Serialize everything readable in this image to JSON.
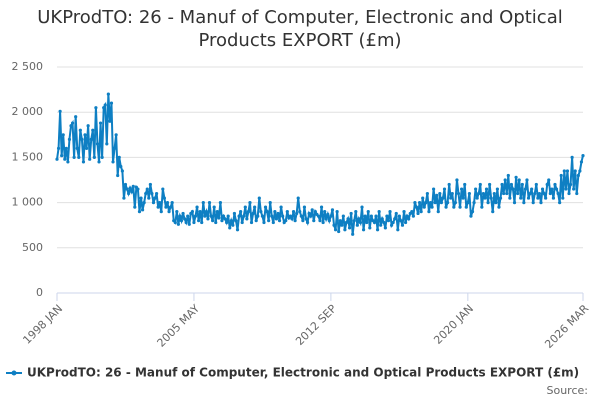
{
  "chart_data": {
    "type": "line",
    "title": "UKProdTO: 26 - Manuf of Computer, Electronic and Optical Products EXPORT (£m)",
    "source": "Source:",
    "categories": [
      "1998 JAN",
      null,
      null,
      null,
      null,
      null,
      null,
      null,
      null,
      null,
      null,
      null,
      null,
      null,
      null,
      null,
      null,
      null,
      null,
      null,
      null,
      null,
      null,
      null,
      null,
      null,
      null,
      null,
      null,
      null,
      null,
      null,
      null,
      null,
      null,
      null,
      null,
      null,
      null,
      null,
      null,
      null,
      null,
      null,
      null,
      null,
      null,
      null,
      null,
      null,
      null,
      null,
      null,
      null,
      null,
      null,
      null,
      null,
      null,
      null,
      null,
      null,
      null,
      null,
      null,
      null,
      null,
      null,
      null,
      null,
      null,
      null,
      null,
      null,
      null,
      null,
      null,
      null,
      null,
      null,
      null,
      null,
      null,
      null,
      null,
      null,
      null,
      null,
      "2005 MAY",
      null,
      null,
      null,
      null,
      null,
      null,
      null,
      null,
      null,
      null,
      null,
      null,
      null,
      null,
      null,
      null,
      null,
      null,
      null,
      null,
      null,
      null,
      null,
      null,
      null,
      null,
      null,
      null,
      null,
      null,
      null,
      null,
      null,
      null,
      null,
      null,
      null,
      null,
      null,
      null,
      null,
      null,
      null,
      null,
      null,
      null,
      null,
      null,
      null,
      null,
      null,
      null,
      null,
      null,
      null,
      null,
      null,
      null,
      null,
      null,
      null,
      null,
      null,
      null,
      null,
      null,
      null,
      null,
      null,
      null,
      null,
      null,
      null,
      null,
      null,
      null,
      null,
      null,
      null,
      null,
      null,
      null,
      null,
      null,
      null,
      null,
      null,
      "2012 SEP",
      null,
      null,
      null,
      null,
      null,
      null,
      null,
      null,
      null,
      null,
      null,
      null,
      null,
      null,
      null,
      null,
      null,
      null,
      null,
      null,
      null,
      null,
      null,
      null,
      null,
      null,
      null,
      null,
      null,
      null,
      null,
      null,
      null,
      null,
      null,
      null,
      null,
      null,
      null,
      null,
      null,
      null,
      null,
      null,
      null,
      null,
      null,
      null,
      null,
      null,
      null,
      null,
      null,
      null,
      null,
      null,
      null,
      null,
      null,
      null,
      null,
      null,
      null,
      null,
      null,
      null,
      null,
      null,
      null,
      null,
      null,
      null,
      null,
      null,
      null,
      null,
      null,
      null,
      null,
      null,
      null,
      null,
      null,
      null,
      null,
      null,
      null,
      "2020 JAN",
      null,
      null,
      null,
      null,
      null,
      null,
      null,
      null,
      null,
      null,
      null,
      null,
      null,
      null,
      null,
      null,
      null,
      null,
      null,
      null,
      null,
      null,
      null,
      null,
      null,
      null,
      null,
      null,
      null,
      null,
      null,
      null,
      null,
      null,
      null,
      null,
      null,
      null,
      null,
      null,
      null,
      null,
      null,
      null,
      null,
      null,
      null,
      null,
      null,
      null,
      null,
      null,
      null,
      null,
      null,
      null,
      null,
      null,
      null,
      null,
      null,
      null,
      null,
      null,
      null,
      null,
      null,
      null,
      null,
      null,
      null,
      null,
      null,
      "2026 MAR"
    ],
    "series": [
      {
        "name": "UKProdTO: 26 - Manuf of Computer, Electronic and Optical Products EXPORT (£m)",
        "color": "#0e7fc3",
        "values": [
          1480,
          1600,
          2010,
          1520,
          1750,
          1480,
          1600,
          1450,
          1700,
          1850,
          1880,
          1500,
          1950,
          1600,
          1500,
          1800,
          1700,
          1450,
          1750,
          1600,
          1850,
          1480,
          1700,
          1800,
          1500,
          2050,
          1650,
          1450,
          1880,
          1500,
          2050,
          2080,
          1650,
          2200,
          1900,
          2100,
          1450,
          1600,
          1750,
          1300,
          1500,
          1400,
          1350,
          1050,
          1200,
          1150,
          1100,
          1160,
          1120,
          1180,
          950,
          1170,
          1150,
          900,
          1050,
          920,
          1000,
          1100,
          1150,
          1050,
          1200,
          1100,
          1000,
          1050,
          1100,
          950,
          1000,
          900,
          1150,
          1050,
          950,
          1000,
          900,
          950,
          1000,
          800,
          780,
          900,
          760,
          850,
          800,
          880,
          820,
          780,
          850,
          760,
          880,
          900,
          780,
          850,
          950,
          800,
          900,
          780,
          1000,
          850,
          900,
          820,
          1000,
          850,
          800,
          950,
          780,
          900,
          830,
          1000,
          800,
          850,
          820,
          780,
          850,
          720,
          800,
          750,
          880,
          800,
          700,
          850,
          900,
          780,
          850,
          950,
          820,
          900,
          1000,
          780,
          880,
          950,
          800,
          850,
          1050,
          900,
          850,
          780,
          950,
          900,
          800,
          1000,
          850,
          780,
          900,
          820,
          880,
          800,
          950,
          850,
          780,
          800,
          900,
          830,
          850,
          820,
          900,
          800,
          880,
          1050,
          900,
          850,
          800,
          950,
          820,
          780,
          880,
          850,
          920,
          800,
          900,
          870,
          850,
          800,
          950,
          780,
          900,
          820,
          870,
          800,
          850,
          920,
          750,
          700,
          900,
          680,
          800,
          750,
          850,
          700,
          780,
          820,
          720,
          880,
          650,
          800,
          900,
          750,
          820,
          780,
          950,
          700,
          850,
          780,
          900,
          720,
          850,
          800,
          780,
          850,
          700,
          900,
          750,
          820,
          780,
          720,
          850,
          800,
          900,
          750,
          780,
          820,
          880,
          700,
          850,
          800,
          750,
          900,
          780,
          850,
          820,
          880,
          900,
          850,
          1000,
          950,
          880,
          1000,
          900,
          1050,
          950,
          1000,
          1100,
          900,
          1000,
          950,
          1150,
          1000,
          1080,
          900,
          1100,
          1000,
          1050,
          1150,
          950,
          1000,
          1200,
          1050,
          1100,
          950,
          1000,
          1250,
          1100,
          950,
          1150,
          1050,
          1200,
          950,
          1000,
          1100,
          850,
          900,
          1000,
          1150,
          1050,
          1100,
          1200,
          950,
          1100,
          1050,
          1150,
          1000,
          1200,
          1050,
          900,
          1100,
          1000,
          1150,
          950,
          1050,
          1200,
          1100,
          1250,
          1100,
          1300,
          1050,
          1200,
          1150,
          1000,
          1280,
          1100,
          1250,
          1050,
          1200,
          1000,
          1150,
          1250,
          1050,
          1100,
          1150,
          1000,
          1100,
          1200,
          1050,
          1100,
          1000,
          1150,
          1100,
          1050,
          1200,
          1250,
          1100,
          1150,
          1050,
          1200,
          1150,
          1100,
          1000,
          1300,
          1050,
          1350,
          1150,
          1350,
          1100,
          1200,
          1500,
          1150,
          1350,
          1100,
          1300,
          1350,
          1450,
          1520
        ]
      }
    ],
    "ylim": [
      0,
      2500
    ],
    "yticks": [
      0,
      500,
      {
        "value": 1000,
        "label": "1 000"
      },
      {
        "value": 1500,
        "label": "1 500"
      },
      {
        "value": 2000,
        "label": "2 000"
      },
      {
        "value": 2500,
        "label": "2 500"
      }
    ],
    "grid": true
  }
}
